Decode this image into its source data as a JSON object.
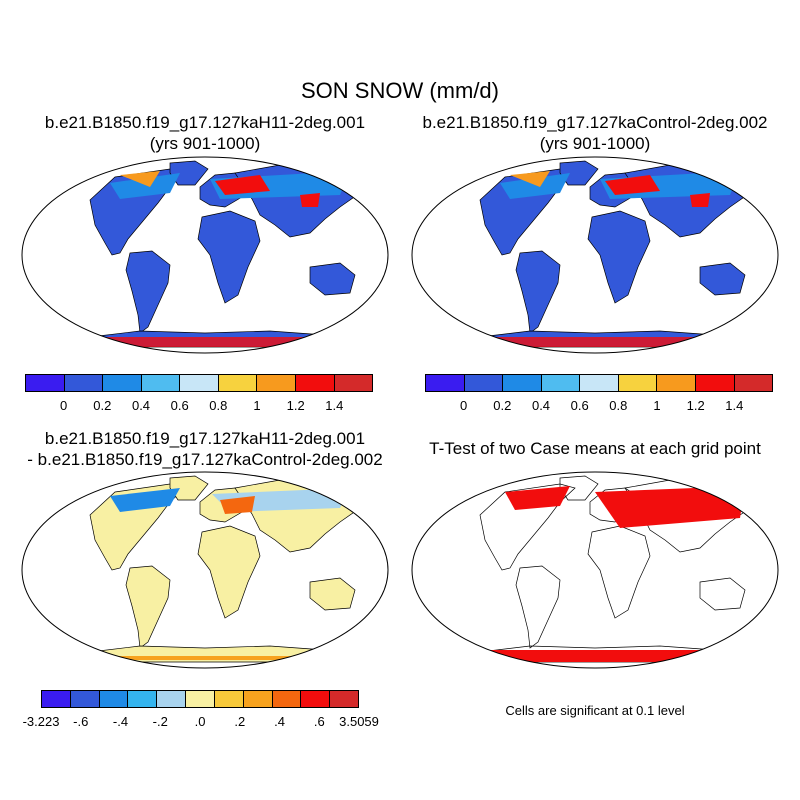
{
  "figure": {
    "title": "SON SNOW (mm/d)"
  },
  "panels": [
    {
      "line1": "b.e21.B1850.f19_g17.127kaH11-2deg.001",
      "line2": "(yrs 901-1000)"
    },
    {
      "line1": "b.e21.B1850.f19_g17.127kaControl-2deg.002",
      "line2": "(yrs 901-1000)"
    },
    {
      "line1": "b.e21.B1850.f19_g17.127kaH11-2deg.001",
      "line2": "- b.e21.B1850.f19_g17.127kaControl-2deg.002"
    },
    {
      "line1": "T-Test of two Case means at each grid point",
      "line2": ""
    }
  ],
  "colorbars": {
    "abs": {
      "colors": [
        "#3a1cf0",
        "#3358d9",
        "#1f8ae6",
        "#4fbcf0",
        "#c8e6f7",
        "#f7d23e",
        "#f79a1e",
        "#f20d0d",
        "#d42a2a"
      ],
      "ticks": [
        "0",
        "0.2",
        "0.4",
        "0.6",
        "0.8",
        "1",
        "1.2",
        "1.4"
      ]
    },
    "diff": {
      "colors": [
        "#3a1cf0",
        "#3358d9",
        "#1f8ae6",
        "#34b4ee",
        "#a8d3ee",
        "#f8f0a3",
        "#f7c93a",
        "#f7a21e",
        "#f4670f",
        "#f20d0d",
        "#d42a2a"
      ],
      "ticks": [
        "-3.223",
        "-.6",
        "-.4",
        "-.2",
        ".0",
        ".2",
        ".4",
        ".6",
        "3.5059"
      ]
    }
  },
  "significance_note": "Cells are significant at 0.1 level",
  "map_colors": {
    "ocean": "#ffffff",
    "land_low": "#3358d9",
    "snow_mid": "#1f8ae6",
    "snow_high": "#f79a1e",
    "snow_max": "#f20d0d",
    "diff_base": "#f8f0a3",
    "signif": "#f20d0d"
  }
}
